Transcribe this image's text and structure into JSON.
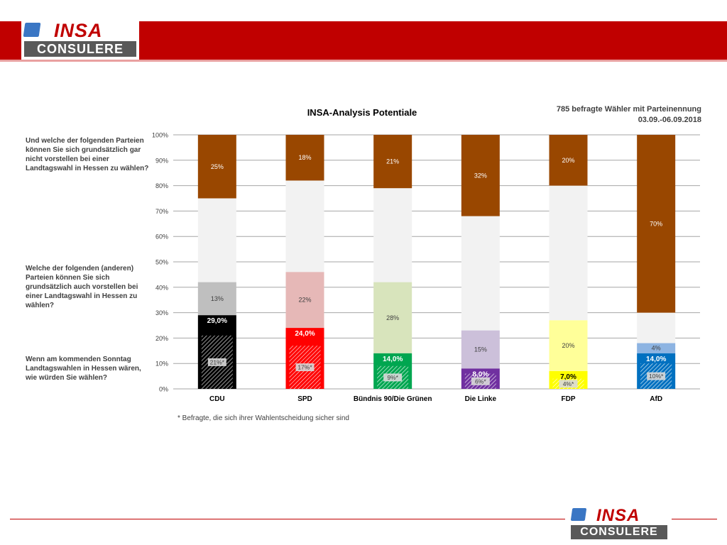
{
  "header": {
    "logo_top": "INSA",
    "logo_bottom": "CONSULERE"
  },
  "footer_logo": {
    "logo_top": "INSA",
    "logo_bottom": "CONSULERE"
  },
  "questions": {
    "q1": "Und welche der folgenden Parteien können Sie sich grundsätzlich gar nicht vorstellen bei einer Landtagswahl in Hessen zu wählen?",
    "q2": "Welche der folgenden (anderen) Parteien können Sie sich grundsätzlich auch vorstellen bei einer Landtagswahl in Hessen zu wählen?",
    "q3": "Wenn am kommenden Sonntag Landtagswahlen in Hessen wären, wie würden Sie wählen?"
  },
  "info": {
    "line1": "785 befragte Wähler mit Parteinennung",
    "line2": "03.09.-06.09.2018"
  },
  "footnote": "* Befragte, die sich ihrer Wahlentscheidung sicher sind",
  "chart_data": {
    "type": "bar",
    "stacked": true,
    "title": "INSA-Analysis Potentiale",
    "ylim": [
      0,
      100
    ],
    "ytick_labels": [
      "0%",
      "10%",
      "20%",
      "30%",
      "40%",
      "50%",
      "60%",
      "70%",
      "80%",
      "90%",
      "100%"
    ],
    "grid": true,
    "categories": [
      "CDU",
      "SPD",
      "Bündnis 90/Die Grünen",
      "Die Linke",
      "FDP",
      "AfD"
    ],
    "series": [
      {
        "role": "sicher",
        "values": [
          21,
          17,
          9,
          6,
          4,
          10
        ],
        "labels": [
          "21%*",
          "17%*",
          "9%*",
          "6%*",
          "4%*",
          "10%*"
        ]
      },
      {
        "role": "wahlabsicht",
        "values": [
          29.0,
          24.0,
          14.0,
          8.0,
          7.0,
          14.0
        ],
        "labels": [
          "29,0%",
          "24,0%",
          "14,0%",
          "8,0%",
          "7,0%",
          "14,0%"
        ]
      },
      {
        "role": "vorstellbar",
        "values": [
          13,
          22,
          28,
          15,
          20,
          4
        ],
        "labels": [
          "13%",
          "22%",
          "28%",
          "15%",
          "20%",
          "4%"
        ]
      },
      {
        "role": "ausgeschlossen",
        "values": [
          25,
          18,
          21,
          32,
          20,
          70
        ],
        "labels": [
          "25%",
          "18%",
          "21%",
          "32%",
          "20%",
          "70%"
        ]
      }
    ],
    "colors": {
      "party": [
        "#000000",
        "#ff0000",
        "#00a650",
        "#7030a0",
        "#ffff00",
        "#0070c0"
      ],
      "potential": [
        "#bfbfbf",
        "#e6b8b7",
        "#d8e4bc",
        "#ccc0da",
        "#ffff99",
        "#8db4e2"
      ],
      "excluded": "#994700",
      "rest": "#f2f2f2",
      "grid": "#a6a6a6"
    }
  }
}
